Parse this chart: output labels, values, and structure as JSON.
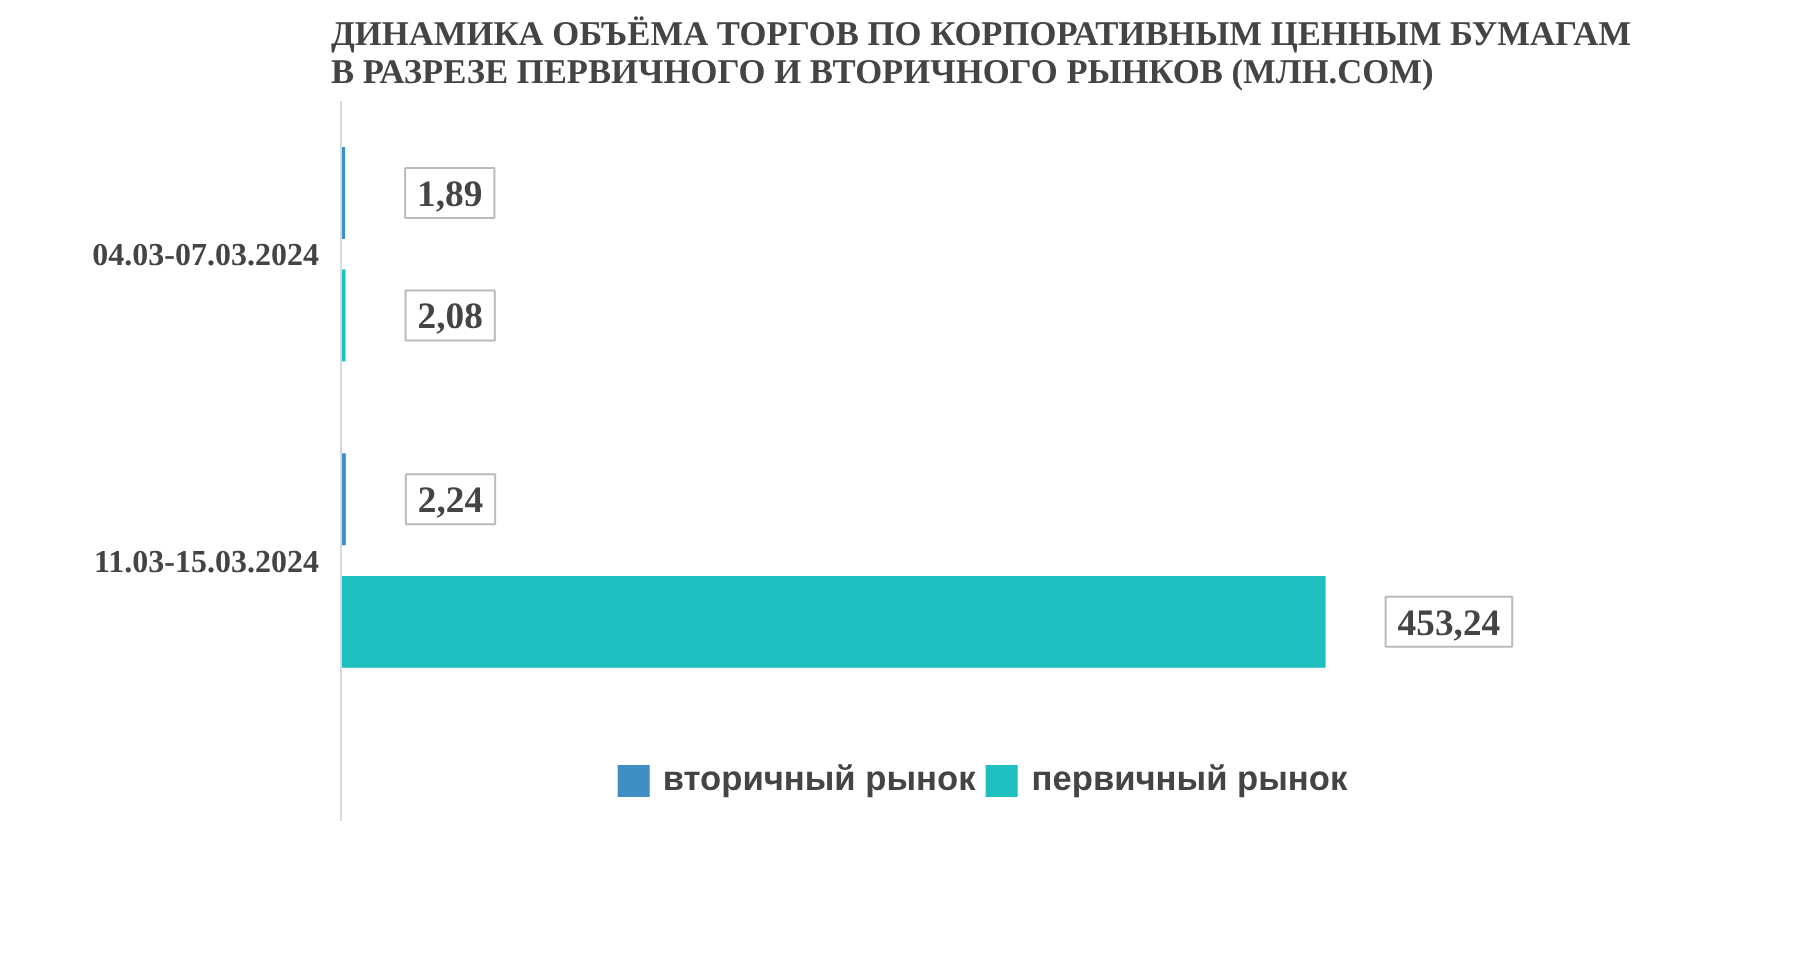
{
  "chart_data": {
    "type": "bar",
    "orientation": "horizontal",
    "title": "ДИНАМИКА ОБЪЁМА ТОРГОВ ПО КОРПОРАТИВНЫМ ЦЕННЫМ БУМАГАМ\nВ РАЗРЕЗЕ ПЕРВИЧНОГО И ВТОРИЧНОГО РЫНКОВ  (МЛН.СОМ)",
    "categories": [
      "04.03-07.03.2024",
      "11.03-15.03.2024"
    ],
    "series": [
      {
        "name": "вторичный рынок",
        "color": "#3f8fc4",
        "values": [
          1.89,
          2.24
        ],
        "value_labels": [
          "1,89",
          "2,24"
        ]
      },
      {
        "name": "первичный рынок",
        "color": "#1fbfbf",
        "values": [
          2.08,
          453.24
        ],
        "value_labels": [
          "2,08",
          "453,24"
        ]
      }
    ],
    "legend": "bottom"
  }
}
